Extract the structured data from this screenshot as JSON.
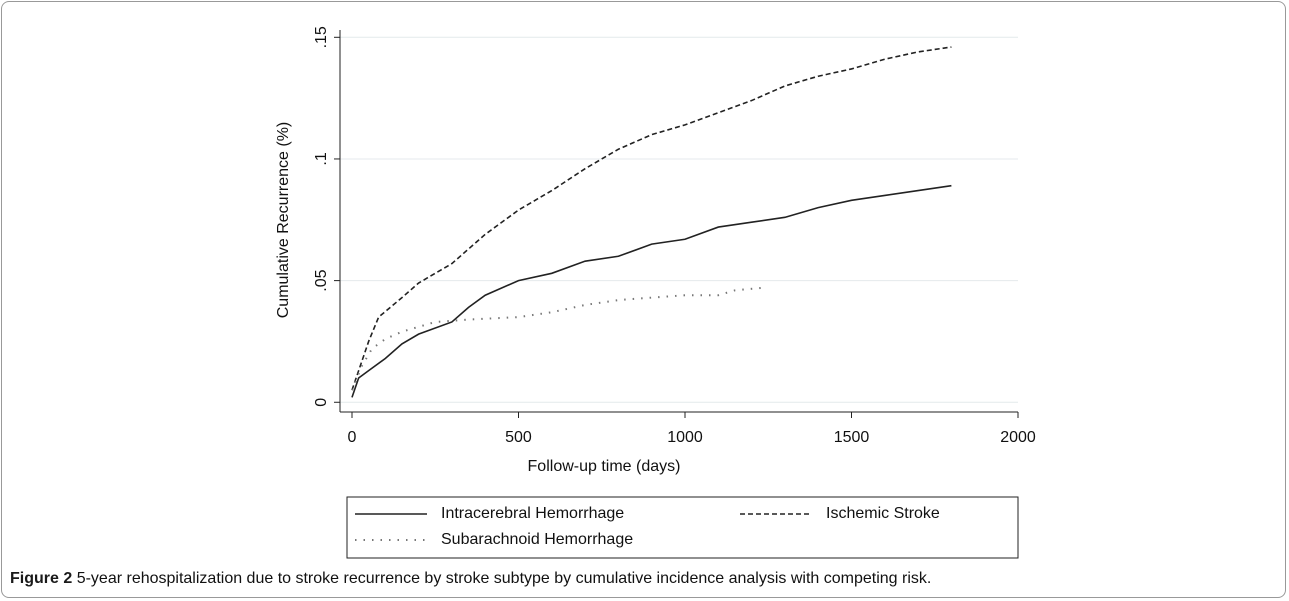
{
  "chart_data": {
    "type": "line",
    "x_label": "Follow-up time (days)",
    "y_label": "Cumulative Recurrence (%)",
    "xlim": [
      -36,
      2000
    ],
    "xticks": [
      0,
      500,
      1000,
      1500,
      2000
    ],
    "ylim": [
      -0.004,
      0.153
    ],
    "yticks": [
      0,
      {
        "value": 0.05,
        "label": ".05"
      },
      {
        "value": 0.1,
        "label": ".1"
      },
      {
        "value": 0.15,
        "label": ".15"
      }
    ],
    "grid": true,
    "series": [
      {
        "name": "Intracerebral Hemorrhage",
        "color": "#222222",
        "line_style": "solid",
        "x": [
          0,
          20,
          50,
          100,
          150,
          200,
          300,
          350,
          400,
          500,
          600,
          700,
          800,
          900,
          1000,
          1100,
          1200,
          1300,
          1400,
          1500,
          1600,
          1700,
          1800
        ],
        "values": [
          0.002,
          0.01,
          0.013,
          0.018,
          0.024,
          0.028,
          0.033,
          0.039,
          0.044,
          0.05,
          0.053,
          0.058,
          0.06,
          0.065,
          0.067,
          0.072,
          0.074,
          0.076,
          0.08,
          0.083,
          0.085,
          0.087,
          0.089
        ]
      },
      {
        "name": "Ischemic Stroke",
        "color": "#222222",
        "line_style": "dashed",
        "x": [
          0,
          25,
          50,
          80,
          150,
          200,
          300,
          400,
          500,
          600,
          700,
          800,
          900,
          1000,
          1100,
          1200,
          1300,
          1400,
          1500,
          1600,
          1700,
          1800
        ],
        "values": [
          0.005,
          0.015,
          0.025,
          0.035,
          0.043,
          0.049,
          0.057,
          0.069,
          0.079,
          0.087,
          0.096,
          0.104,
          0.11,
          0.114,
          0.119,
          0.124,
          0.13,
          0.134,
          0.137,
          0.141,
          0.144,
          0.146
        ]
      },
      {
        "name": "Subarachnoid Hemorrhage",
        "color": "#777777",
        "line_style": "dotted",
        "x": [
          0,
          30,
          60,
          100,
          150,
          250,
          350,
          500,
          600,
          700,
          800,
          900,
          1000,
          1100,
          1150,
          1230
        ],
        "values": [
          0.005,
          0.015,
          0.022,
          0.026,
          0.029,
          0.033,
          0.034,
          0.035,
          0.037,
          0.04,
          0.042,
          0.043,
          0.044,
          0.044,
          0.046,
          0.047
        ]
      }
    ]
  },
  "caption": {
    "label": "Figure 2",
    "text": "5-year rehospitalization due to stroke recurrence by stroke subtype by cumulative incidence analysis with competing risk."
  }
}
